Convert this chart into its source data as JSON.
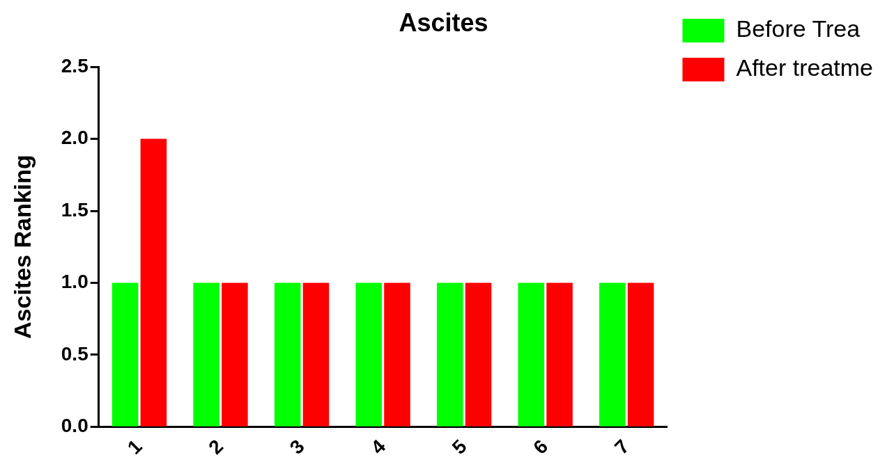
{
  "chart_data": {
    "type": "bar",
    "title": "Ascites",
    "ylabel": "Ascites Ranking",
    "categories": [
      "1",
      "2",
      "3",
      "4",
      "5",
      "6",
      "7"
    ],
    "series": [
      {
        "name": "Before Trea",
        "color": "#00ff00",
        "values": [
          1,
          1,
          1,
          1,
          1,
          1,
          1
        ]
      },
      {
        "name": "After treatme",
        "color": "#ff0000",
        "values": [
          2,
          1,
          1,
          1,
          1,
          1,
          1
        ]
      }
    ],
    "ylim": [
      0,
      2.5
    ],
    "yticks": [
      {
        "value": 0,
        "label": "0.0"
      },
      0.5,
      {
        "value": 1,
        "label": "1.0"
      },
      1.5,
      {
        "value": 2,
        "label": "2.0"
      },
      2.5
    ],
    "legend": "top right"
  }
}
